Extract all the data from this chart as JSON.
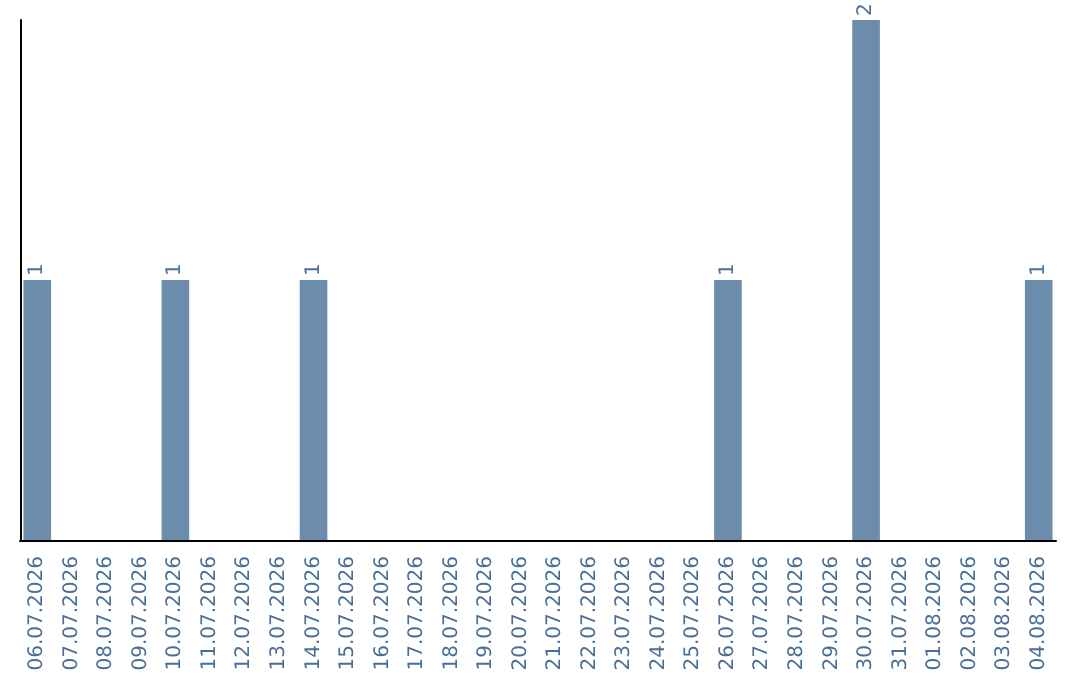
{
  "chart_data": {
    "type": "bar",
    "categories": [
      "06.07.2026",
      "07.07.2026",
      "08.07.2026",
      "09.07.2026",
      "10.07.2026",
      "11.07.2026",
      "12.07.2026",
      "13.07.2026",
      "14.07.2026",
      "15.07.2026",
      "16.07.2026",
      "17.07.2026",
      "18.07.2026",
      "19.07.2026",
      "20.07.2026",
      "21.07.2026",
      "22.07.2026",
      "23.07.2026",
      "24.07.2026",
      "25.07.2026",
      "26.07.2026",
      "27.07.2026",
      "28.07.2026",
      "29.07.2026",
      "30.07.2026",
      "31.07.2026",
      "01.08.2026",
      "02.08.2026",
      "03.08.2026",
      "04.08.2026"
    ],
    "values": [
      1,
      0,
      0,
      0,
      1,
      0,
      0,
      0,
      1,
      0,
      0,
      0,
      0,
      0,
      0,
      0,
      0,
      0,
      0,
      0,
      1,
      0,
      0,
      0,
      2,
      0,
      0,
      0,
      0,
      1
    ],
    "color": "#6b8cab",
    "value_labels": [
      "1",
      null,
      null,
      null,
      "1",
      null,
      null,
      null,
      "1",
      null,
      null,
      null,
      null,
      null,
      null,
      null,
      null,
      null,
      null,
      null,
      "1",
      null,
      null,
      null,
      "2",
      null,
      null,
      null,
      null,
      "1"
    ],
    "tick_labels": "x"
  }
}
